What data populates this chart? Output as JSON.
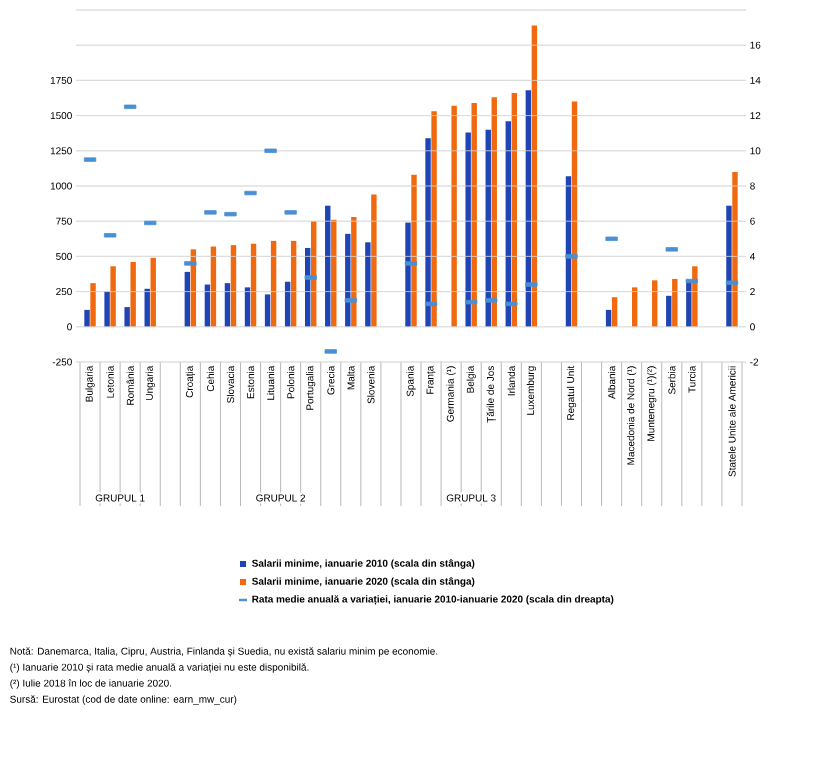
{
  "chart_data": {
    "type": "bar",
    "categories": [
      "Bulgaria",
      "Letonia",
      "România",
      "Ungaria",
      null,
      "Croația",
      "Cehia",
      "Slovacia",
      "Estonia",
      "Lituania",
      "Polonia",
      "Portugalia",
      "Grecia",
      "Malta",
      "Slovenia",
      null,
      "Spania",
      "Franța",
      "Germania (¹)",
      "Belgia",
      "Țările de Jos",
      "Irlanda",
      "Luxemburg",
      null,
      "Regatul Unit",
      null,
      "Albania",
      "Macedonia de Nord (¹)",
      "Muntenegru (¹)(²)",
      "Serbia",
      "Turcia",
      null,
      "Statele Unite ale Americii"
    ],
    "series": [
      {
        "name": "Salarii minime, ianuarie 2010 (scala din stânga)",
        "color": "#1f45b5",
        "values": [
          120,
          250,
          140,
          270,
          null,
          390,
          300,
          310,
          280,
          230,
          320,
          560,
          860,
          660,
          600,
          null,
          740,
          1340,
          null,
          1380,
          1400,
          1460,
          1680,
          null,
          1070,
          null,
          120,
          null,
          null,
          220,
          330,
          null,
          860
        ]
      },
      {
        "name": "Salarii minime, ianuarie 2020 (scala din stânga)",
        "color": "#f0690f",
        "values": [
          310,
          430,
          460,
          490,
          null,
          550,
          570,
          580,
          590,
          610,
          610,
          750,
          760,
          780,
          940,
          null,
          1080,
          1530,
          1570,
          1590,
          1630,
          1660,
          2140,
          null,
          1600,
          null,
          210,
          280,
          330,
          340,
          430,
          null,
          1100
        ]
      },
      {
        "name": "Rata medie anuală a variației, ianuarie 2010-ianuarie 2020 (scala din dreapta)",
        "color": "#4a8fd4",
        "type": "scatter",
        "axis": "y2",
        "marker": "square",
        "values": [
          9.5,
          5.2,
          12.5,
          5.9,
          null,
          3.6,
          6.5,
          6.4,
          7.6,
          10.0,
          6.5,
          2.8,
          -1.4,
          1.5,
          null,
          null,
          3.6,
          1.3,
          null,
          1.4,
          1.5,
          1.3,
          2.4,
          null,
          4.0,
          null,
          5.0,
          null,
          null,
          4.4,
          2.6,
          null,
          2.5
        ]
      }
    ],
    "ylim": [
      -250,
      2250
    ],
    "yticks": [
      -250,
      0,
      250,
      500,
      750,
      1000,
      1250,
      1500,
      1750,
      {
        "value": 2000,
        "label": null
      },
      {
        "value": 2250,
        "label": null
      }
    ],
    "y2lim": [
      -2,
      18
    ],
    "y2ticks": [
      -2,
      0,
      2,
      4,
      6,
      8,
      10,
      12,
      14,
      16,
      {
        "value": 18,
        "label": null
      }
    ],
    "grid": "y",
    "legend": "bottom",
    "annotations": [
      "GRUPUL 1",
      "GRUPUL 2",
      "GRUPUL 3",
      "Notă: Danemarca, Italia, Cipru, Austria, Finlanda și Suedia, nu există salariu minim pe economie.",
      "(¹) Ianuarie 2010 și rata medie anuală a variației nu este disponibilă.",
      "(²) Iulie 2018 în loc de ianuarie 2020.",
      "Sursă: Eurostat (cod de date online: earn_mw_cur)"
    ]
  }
}
